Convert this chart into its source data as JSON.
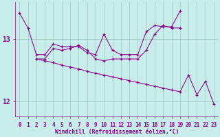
{
  "xlabel": "Windchill (Refroidissement éolien,°C)",
  "background_color": "#c8ecea",
  "line_color": "#880088",
  "grid_color": "#99ccbb",
  "hours": [
    0,
    1,
    2,
    3,
    4,
    5,
    6,
    7,
    8,
    9,
    10,
    11,
    12,
    13,
    14,
    15,
    16,
    17,
    18,
    19,
    20,
    21,
    22,
    23
  ],
  "lineA_x": [
    0,
    1,
    2,
    3,
    4,
    5,
    6,
    7,
    8,
    9,
    10,
    11,
    12,
    13,
    14,
    15,
    16,
    17,
    18,
    19
  ],
  "lineA_y": [
    13.42,
    13.18,
    12.75,
    12.75,
    12.92,
    12.88,
    12.88,
    12.88,
    12.78,
    12.75,
    13.08,
    12.82,
    12.75,
    12.75,
    12.75,
    13.12,
    13.22,
    13.2,
    13.2,
    13.45
  ],
  "lineB_x": [
    2,
    3,
    4,
    5,
    6,
    7,
    8,
    9,
    10,
    11,
    12,
    13,
    14,
    15,
    16,
    17,
    18,
    19
  ],
  "lineB_y": [
    12.68,
    12.68,
    12.85,
    12.82,
    12.85,
    12.9,
    12.82,
    12.68,
    12.65,
    12.68,
    12.68,
    12.68,
    12.68,
    12.82,
    13.08,
    13.22,
    13.18,
    13.18
  ],
  "lineC_x": [
    2,
    3,
    4,
    5,
    6,
    7,
    8,
    9,
    10,
    11,
    12,
    13,
    14,
    15,
    16,
    17,
    18,
    19,
    20,
    21,
    22,
    23
  ],
  "lineC_y": [
    12.68,
    12.65,
    12.62,
    12.58,
    12.55,
    12.52,
    12.48,
    12.45,
    12.42,
    12.39,
    12.36,
    12.33,
    12.3,
    12.27,
    12.24,
    12.21,
    12.18,
    12.15,
    12.42,
    12.1,
    12.32,
    11.95
  ],
  "ylim": [
    11.75,
    13.6
  ],
  "yticks": [
    12,
    13
  ],
  "xlim": [
    -0.5,
    23.5
  ],
  "xlabel_fontsize": 5.8,
  "tick_fontsize": 5.5,
  "ytick_fontsize": 7,
  "linewidth": 0.75,
  "markersize": 3
}
